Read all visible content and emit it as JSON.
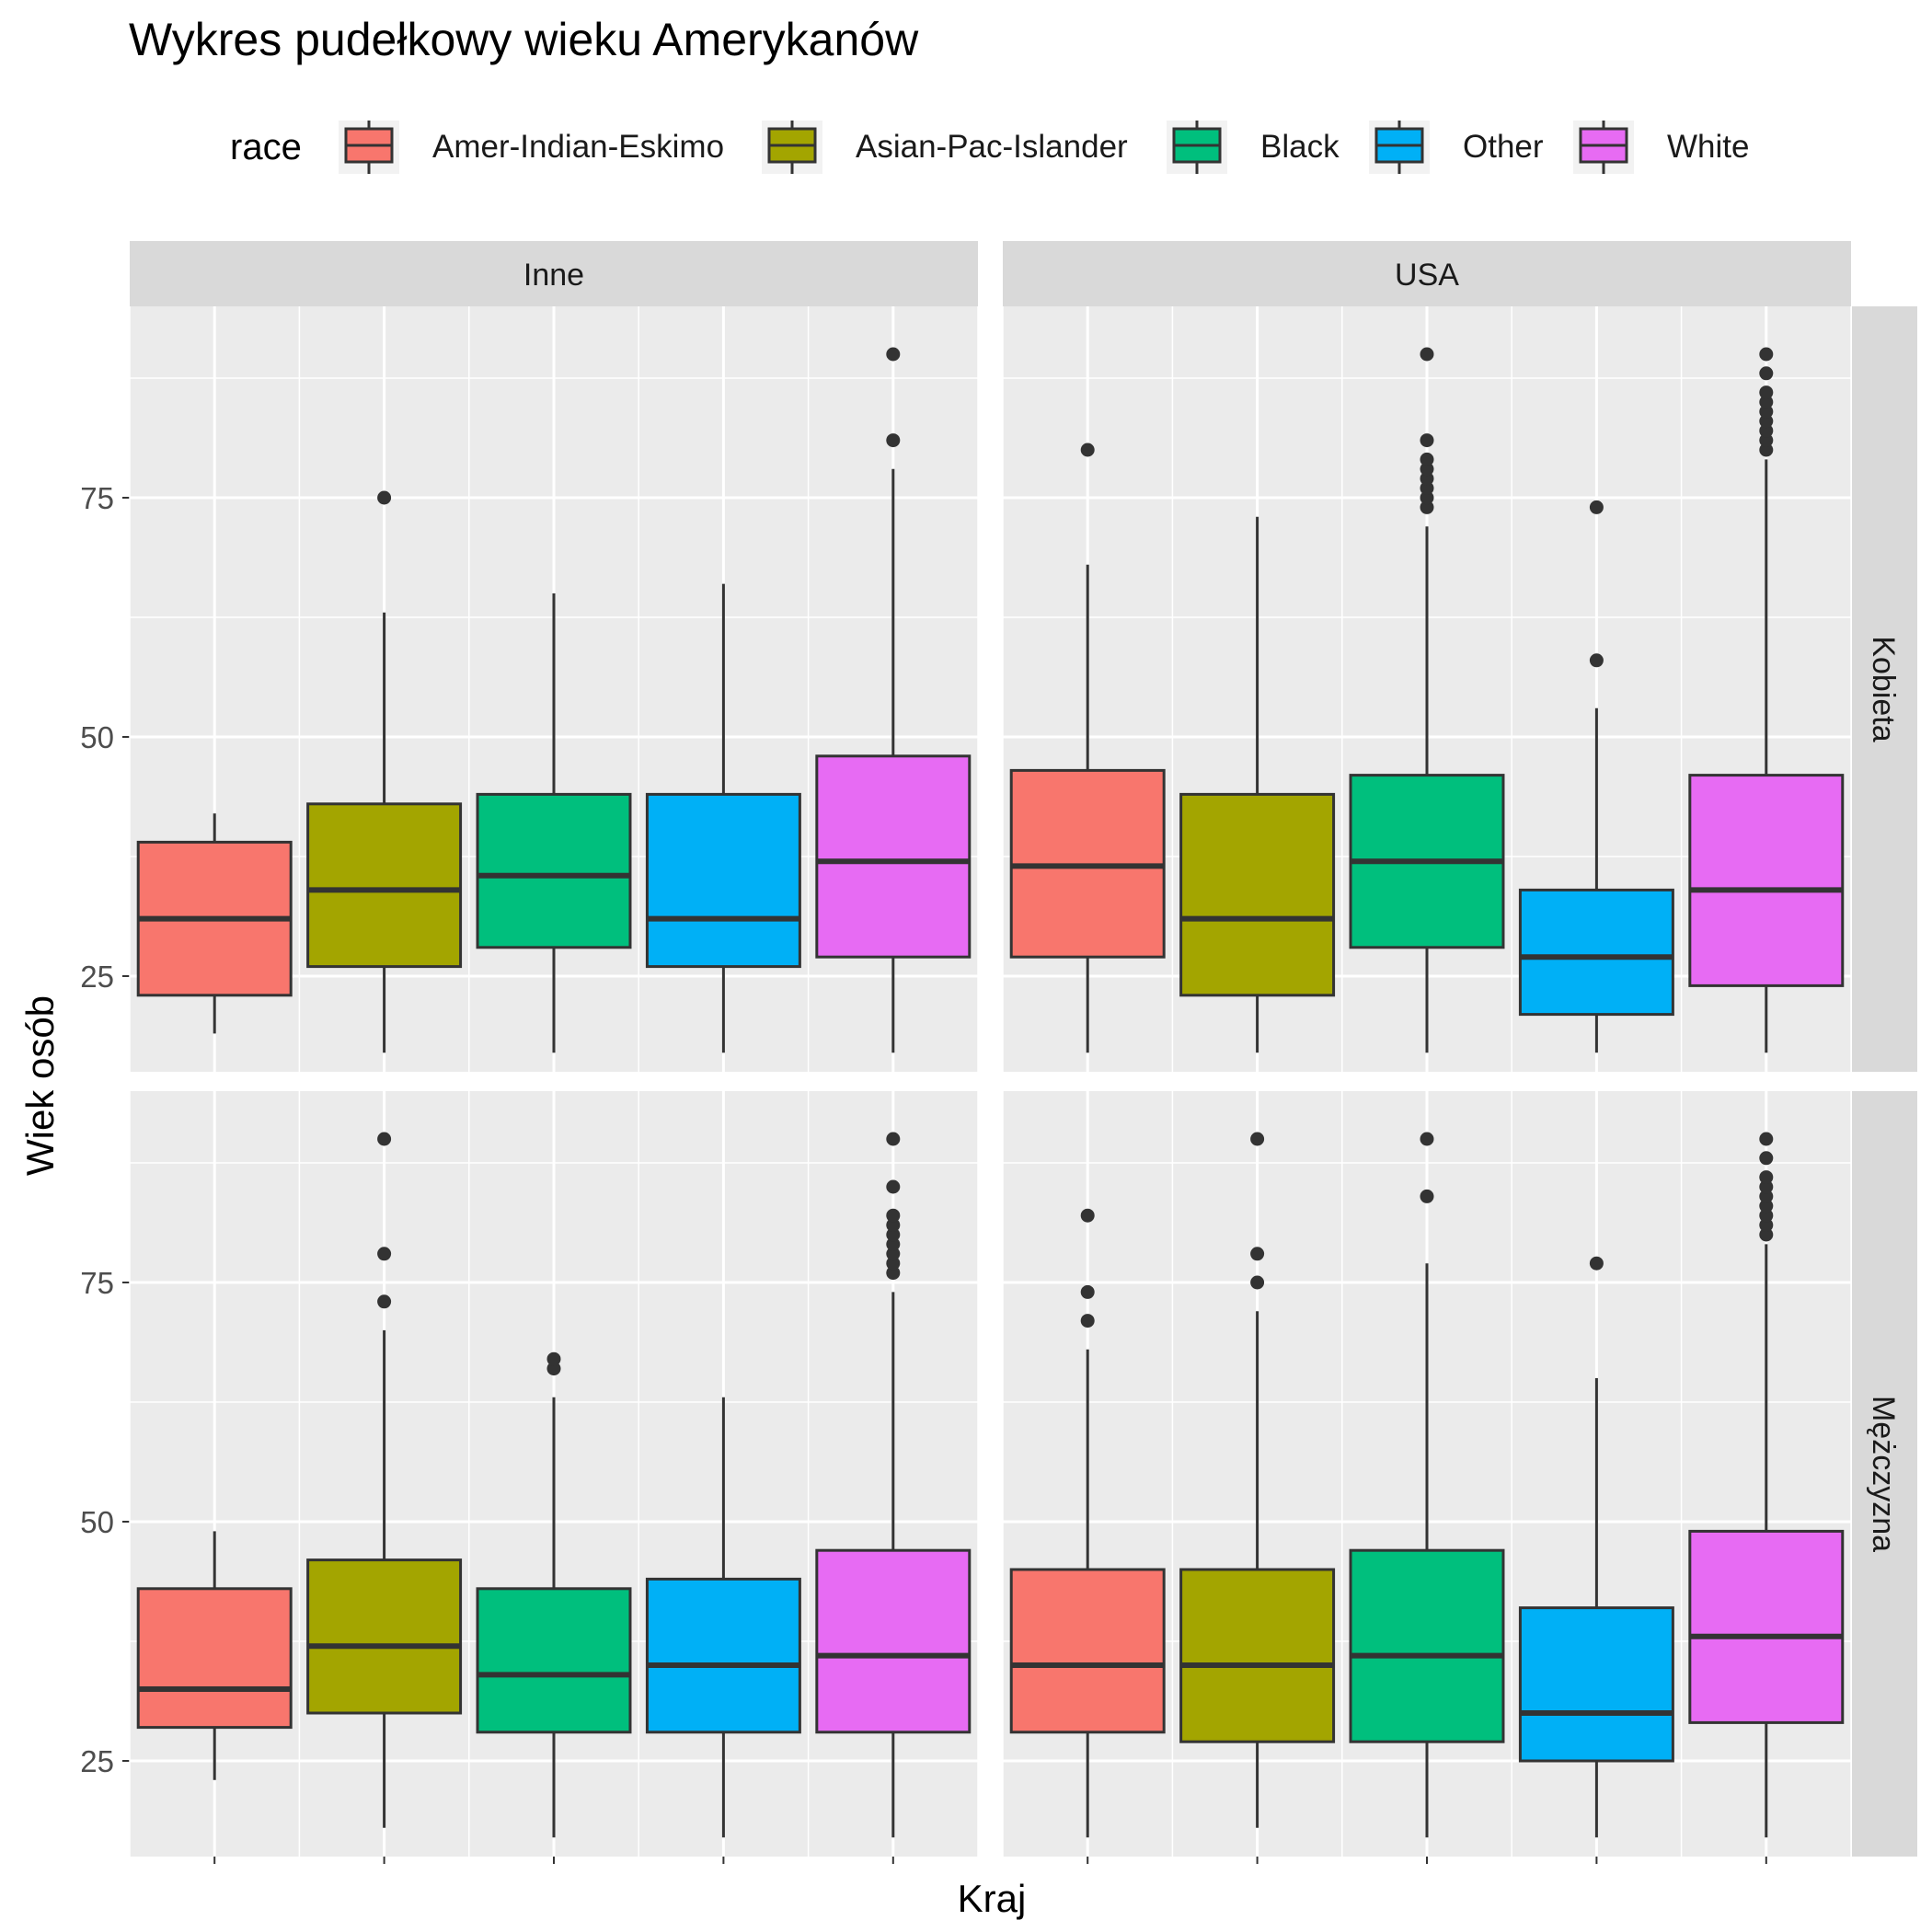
{
  "chart_data": {
    "type": "boxplot",
    "title": "Wykres pudełkowy wieku Amerykanów",
    "xlabel": "Kraj",
    "ylabel": "Wiek osób",
    "legend": {
      "title": "race",
      "position": "top",
      "entries": [
        {
          "name": "Amer-Indian-Eskimo",
          "color": "#F8766D"
        },
        {
          "name": "Asian-Pac-Islander",
          "color": "#A3A500"
        },
        {
          "name": "Black",
          "color": "#00BF7D"
        },
        {
          "name": "Other",
          "color": "#00B0F6"
        },
        {
          "name": "White",
          "color": "#E76BF3"
        }
      ]
    },
    "facets": {
      "columns": [
        "Inne",
        "USA"
      ],
      "rows": [
        "Kobieta",
        "Mężczyzna"
      ]
    },
    "y_ticks": [
      25,
      50,
      75
    ],
    "ylim": [
      15,
      95
    ],
    "grid": true,
    "panels": [
      {
        "column": "Inne",
        "row": "Kobieta",
        "boxes": [
          {
            "race": "Amer-Indian-Eskimo",
            "min": 19,
            "q1": 23,
            "median": 31,
            "q3": 39,
            "max": 42,
            "outliers": []
          },
          {
            "race": "Asian-Pac-Islander",
            "min": 17,
            "q1": 26,
            "median": 34,
            "q3": 43,
            "max": 63,
            "outliers": [
              75
            ]
          },
          {
            "race": "Black",
            "min": 17,
            "q1": 28,
            "median": 35.5,
            "q3": 44,
            "max": 65,
            "outliers": []
          },
          {
            "race": "Other",
            "min": 17,
            "q1": 26,
            "median": 31,
            "q3": 44,
            "max": 66,
            "outliers": []
          },
          {
            "race": "White",
            "min": 17,
            "q1": 27,
            "median": 37,
            "q3": 48,
            "max": 78,
            "outliers": [
              81,
              90
            ]
          }
        ]
      },
      {
        "column": "USA",
        "row": "Kobieta",
        "boxes": [
          {
            "race": "Amer-Indian-Eskimo",
            "min": 17,
            "q1": 27,
            "median": 36.5,
            "q3": 46.5,
            "max": 68,
            "outliers": [
              80
            ]
          },
          {
            "race": "Asian-Pac-Islander",
            "min": 17,
            "q1": 23,
            "median": 31,
            "q3": 44,
            "max": 73,
            "outliers": []
          },
          {
            "race": "Black",
            "min": 17,
            "q1": 28,
            "median": 37,
            "q3": 46,
            "max": 72,
            "outliers": [
              74,
              75,
              76,
              77,
              78,
              79,
              81,
              90
            ]
          },
          {
            "race": "Other",
            "min": 17,
            "q1": 21,
            "median": 27,
            "q3": 34,
            "max": 53,
            "outliers": [
              58,
              74
            ]
          },
          {
            "race": "White",
            "min": 17,
            "q1": 24,
            "median": 34,
            "q3": 46,
            "max": 79,
            "outliers": [
              80,
              81,
              82,
              83,
              84,
              85,
              86,
              88,
              90
            ]
          }
        ]
      },
      {
        "column": "Inne",
        "row": "Mężczyzna",
        "boxes": [
          {
            "race": "Amer-Indian-Eskimo",
            "min": 23,
            "q1": 28.5,
            "median": 32.5,
            "q3": 43,
            "max": 49,
            "outliers": []
          },
          {
            "race": "Asian-Pac-Islander",
            "min": 18,
            "q1": 30,
            "median": 37,
            "q3": 46,
            "max": 70,
            "outliers": [
              73,
              78,
              90
            ]
          },
          {
            "race": "Black",
            "min": 17,
            "q1": 28,
            "median": 34,
            "q3": 43,
            "max": 63,
            "outliers": [
              66,
              67
            ]
          },
          {
            "race": "Other",
            "min": 17,
            "q1": 28,
            "median": 35,
            "q3": 44,
            "max": 63,
            "outliers": []
          },
          {
            "race": "White",
            "min": 17,
            "q1": 28,
            "median": 36,
            "q3": 47,
            "max": 74,
            "outliers": [
              76,
              77,
              78,
              79,
              80,
              81,
              82,
              85,
              90
            ]
          }
        ]
      },
      {
        "column": "USA",
        "row": "Mężczyzna",
        "boxes": [
          {
            "race": "Amer-Indian-Eskimo",
            "min": 17,
            "q1": 28,
            "median": 35,
            "q3": 45,
            "max": 68,
            "outliers": [
              71,
              74,
              82
            ]
          },
          {
            "race": "Asian-Pac-Islander",
            "min": 18,
            "q1": 27,
            "median": 35,
            "q3": 45,
            "max": 72,
            "outliers": [
              75,
              78,
              90
            ]
          },
          {
            "race": "Black",
            "min": 17,
            "q1": 27,
            "median": 36,
            "q3": 47,
            "max": 77,
            "outliers": [
              84,
              90
            ]
          },
          {
            "race": "Other",
            "min": 17,
            "q1": 25,
            "median": 30,
            "q3": 41,
            "max": 65,
            "outliers": [
              77
            ]
          },
          {
            "race": "White",
            "min": 17,
            "q1": 29,
            "median": 38,
            "q3": 49,
            "max": 79,
            "outliers": [
              80,
              81,
              82,
              83,
              84,
              85,
              86,
              88,
              90
            ]
          }
        ]
      }
    ]
  }
}
